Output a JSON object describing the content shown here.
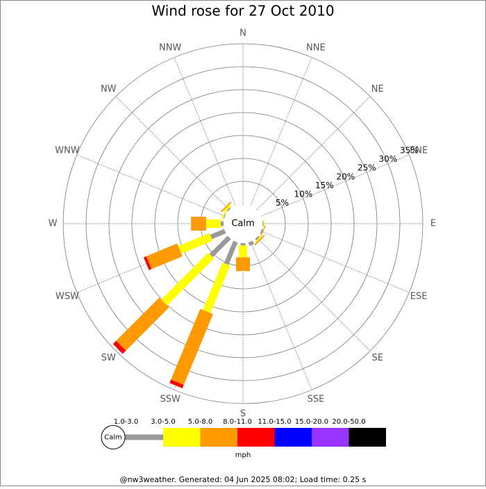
{
  "chart_data": {
    "type": "windrose",
    "title": "Wind rose for 27 Oct 2010",
    "categories": [
      "N",
      "NNE",
      "NE",
      "ENE",
      "E",
      "ESE",
      "SE",
      "SSE",
      "S",
      "SSW",
      "SW",
      "WSW",
      "W",
      "WNW",
      "NW",
      "NNW"
    ],
    "rlim": [
      0,
      35
    ],
    "rticks": [
      {
        "value": 5,
        "label": "5%"
      },
      {
        "value": 10,
        "label": "10%"
      },
      {
        "value": 15,
        "label": "15%"
      },
      {
        "value": 20,
        "label": "20%"
      },
      {
        "value": 25,
        "label": "25%"
      },
      {
        "value": 30,
        "label": "30%"
      },
      {
        "value": 35,
        "label": "35%"
      }
    ],
    "calm_label": "Calm",
    "unit": "mph",
    "series": [
      {
        "name": "1.0-3.0",
        "color": "#999999",
        "values": [
          0,
          0,
          0,
          0,
          0.2,
          0.3,
          0.4,
          0.8,
          0.5,
          5.3,
          5.6,
          3.3,
          0.6,
          0.2,
          0.3,
          0
        ]
      },
      {
        "name": "3.0-5.0",
        "color": "#ffff00",
        "values": [
          0,
          0,
          0,
          0,
          0.2,
          0,
          0.3,
          0,
          2.6,
          11.2,
          14.5,
          7.4,
          3.2,
          0.3,
          0.5,
          0
        ]
      },
      {
        "name": "5.0-8.0",
        "color": "#ff9900",
        "values": [
          0,
          0,
          0,
          0,
          0,
          0.2,
          0.3,
          0,
          3.0,
          16.7,
          13.3,
          7.3,
          3.3,
          0,
          0.3,
          0
        ]
      },
      {
        "name": "8.0-11.0",
        "color": "#ff0000",
        "values": [
          0,
          0,
          0,
          0,
          0,
          0,
          0,
          0,
          0,
          0.8,
          1.0,
          0.6,
          0,
          0,
          0,
          0
        ]
      },
      {
        "name": "11.0-15.0",
        "color": "#0000ff",
        "values": [
          0,
          0,
          0,
          0,
          0,
          0,
          0,
          0,
          0,
          0,
          0,
          0,
          0,
          0,
          0,
          0
        ]
      },
      {
        "name": "15.0-20.0",
        "color": "#9933ff",
        "values": [
          0,
          0,
          0,
          0,
          0,
          0,
          0,
          0,
          0,
          0,
          0,
          0,
          0,
          0,
          0,
          0
        ]
      },
      {
        "name": "20.0-50.0",
        "color": "#000000",
        "values": [
          0,
          0,
          0,
          0,
          0,
          0,
          0,
          0,
          0,
          0,
          0,
          0,
          0,
          0,
          0,
          0
        ]
      }
    ],
    "footer": "@nw3weather. Generated: 04 Jun 2025 08:02; Load time: 0.25 s"
  }
}
